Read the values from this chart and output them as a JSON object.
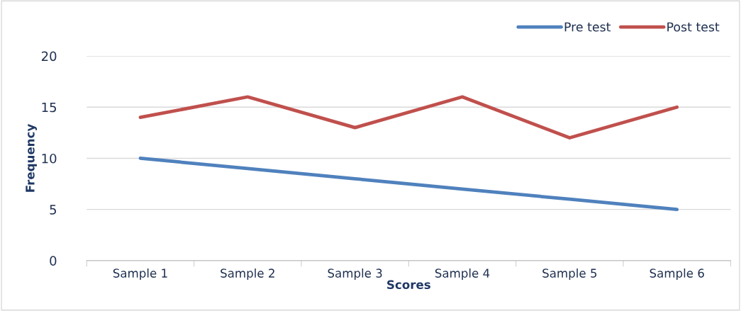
{
  "chart_data": {
    "type": "line",
    "xlabel": "Scores",
    "ylabel": "Frequency",
    "categories": [
      "Sample 1",
      "Sample 2",
      "Sample 3",
      "Sample 4",
      "Sample 5",
      "Sample 6"
    ],
    "series": [
      {
        "name": "Pre test",
        "color": "#4f81bd",
        "values": [
          10,
          9,
          8,
          7,
          6,
          5
        ]
      },
      {
        "name": "Post test",
        "color": "#c0504d",
        "values": [
          14,
          16,
          13,
          16,
          12,
          15
        ]
      }
    ],
    "ylim": [
      0,
      20
    ],
    "yticks": [
      0,
      5,
      10,
      15,
      20
    ],
    "grid": "y",
    "legend": "top right",
    "marker": "none",
    "line_style": "solid"
  }
}
